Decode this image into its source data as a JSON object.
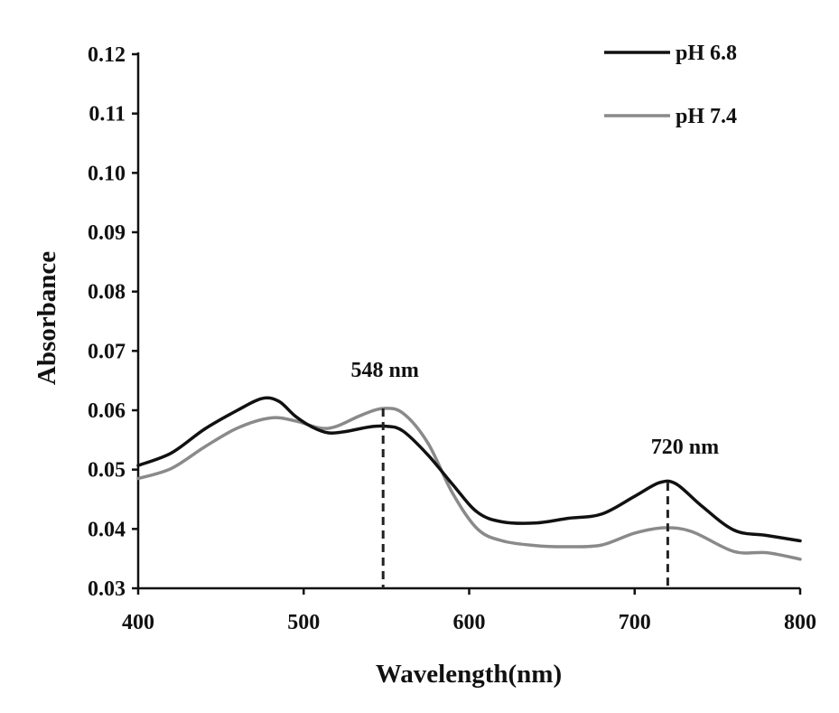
{
  "chart_data": {
    "type": "line",
    "title": "",
    "xlabel": "Wavelength(nm)",
    "ylabel": "Absorbance",
    "xlim": [
      400,
      800
    ],
    "ylim": [
      0.03,
      0.12
    ],
    "xticks": [
      400,
      500,
      600,
      700,
      800
    ],
    "xtick_labels": [
      "400",
      "500",
      "600",
      "700",
      "800"
    ],
    "yticks": [
      0.03,
      0.04,
      0.05,
      0.06,
      0.07,
      0.08,
      0.09,
      0.1,
      0.11,
      0.12
    ],
    "ytick_labels": [
      "0.03",
      "0.04",
      "0.05",
      "0.06",
      "0.07",
      "0.08",
      "0.09",
      "0.10",
      "0.11",
      "0.12"
    ],
    "legend_position": "top-right",
    "series": [
      {
        "name": "pH 6.8",
        "color": "#111111",
        "points": [
          [
            400,
            0.0507
          ],
          [
            420,
            0.0528
          ],
          [
            440,
            0.0568
          ],
          [
            460,
            0.06
          ],
          [
            475,
            0.062
          ],
          [
            485,
            0.0615
          ],
          [
            495,
            0.059
          ],
          [
            505,
            0.0572
          ],
          [
            515,
            0.0562
          ],
          [
            525,
            0.0564
          ],
          [
            540,
            0.0572
          ],
          [
            550,
            0.0573
          ],
          [
            560,
            0.0565
          ],
          [
            575,
            0.0525
          ],
          [
            590,
            0.0475
          ],
          [
            605,
            0.0428
          ],
          [
            620,
            0.0412
          ],
          [
            640,
            0.041
          ],
          [
            660,
            0.0418
          ],
          [
            680,
            0.0425
          ],
          [
            700,
            0.0455
          ],
          [
            715,
            0.0478
          ],
          [
            725,
            0.0476
          ],
          [
            740,
            0.044
          ],
          [
            760,
            0.0398
          ],
          [
            780,
            0.0389
          ],
          [
            800,
            0.038
          ]
        ]
      },
      {
        "name": "pH 7.4",
        "color": "#8a8a8a",
        "points": [
          [
            400,
            0.0485
          ],
          [
            420,
            0.0502
          ],
          [
            440,
            0.0538
          ],
          [
            460,
            0.057
          ],
          [
            480,
            0.0587
          ],
          [
            495,
            0.0582
          ],
          [
            510,
            0.057
          ],
          [
            520,
            0.0573
          ],
          [
            535,
            0.0592
          ],
          [
            548,
            0.0603
          ],
          [
            560,
            0.0595
          ],
          [
            575,
            0.0545
          ],
          [
            590,
            0.046
          ],
          [
            605,
            0.04
          ],
          [
            620,
            0.038
          ],
          [
            640,
            0.0372
          ],
          [
            660,
            0.037
          ],
          [
            680,
            0.0373
          ],
          [
            700,
            0.0393
          ],
          [
            718,
            0.0402
          ],
          [
            735,
            0.0395
          ],
          [
            760,
            0.0362
          ],
          [
            780,
            0.036
          ],
          [
            800,
            0.0349
          ]
        ]
      }
    ],
    "annotations": [
      {
        "text": "548 nm",
        "x": 548,
        "y": 0.0603
      },
      {
        "text": "720 nm",
        "x": 720,
        "y": 0.0478
      }
    ]
  }
}
